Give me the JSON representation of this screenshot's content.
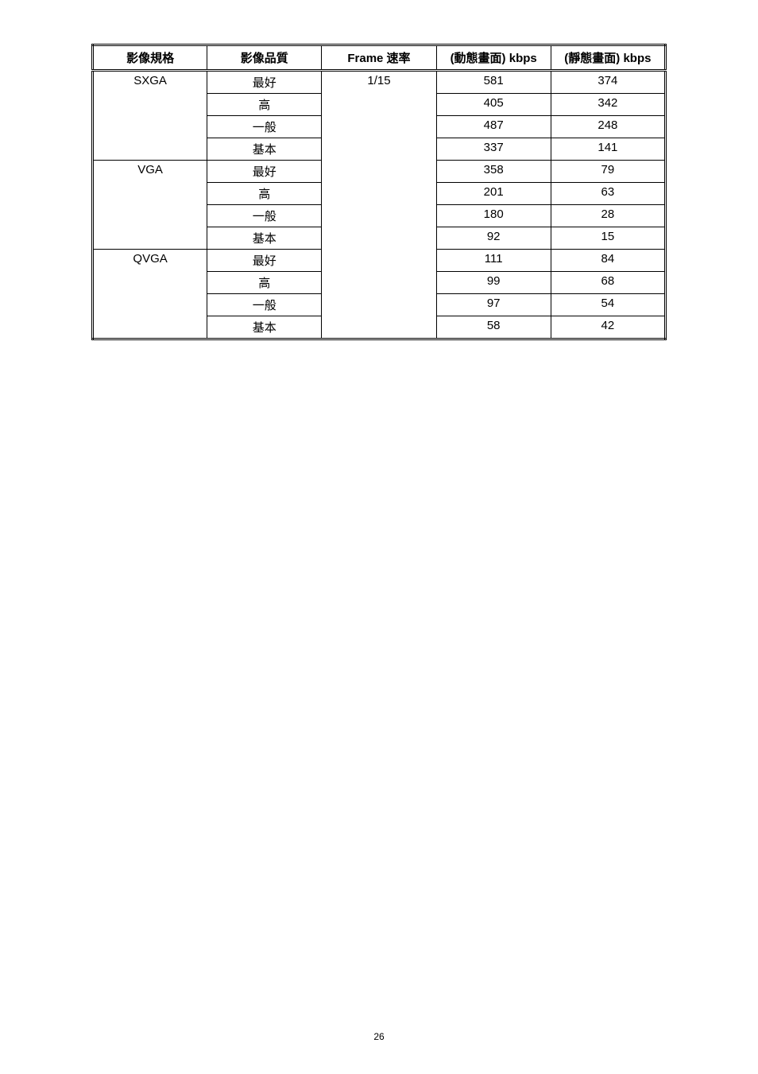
{
  "page_number": "26",
  "table": {
    "headers": [
      "影像規格",
      "影像品質",
      "Frame 速率",
      "(動態畫面) kbps",
      "(靜態畫面) kbps"
    ],
    "frame_rate": "1/15",
    "groups": [
      {
        "format": "SXGA",
        "rows": [
          {
            "quality": "最好",
            "dynamic": "581",
            "static": "374"
          },
          {
            "quality": "高",
            "dynamic": "405",
            "static": "342"
          },
          {
            "quality": "一般",
            "dynamic": "487",
            "static": "248"
          },
          {
            "quality": "基本",
            "dynamic": "337",
            "static": "141"
          }
        ]
      },
      {
        "format": "VGA",
        "rows": [
          {
            "quality": "最好",
            "dynamic": "358",
            "static": "79"
          },
          {
            "quality": "高",
            "dynamic": "201",
            "static": "63"
          },
          {
            "quality": "一般",
            "dynamic": "180",
            "static": "28"
          },
          {
            "quality": "基本",
            "dynamic": "92",
            "static": "15"
          }
        ]
      },
      {
        "format": "QVGA",
        "rows": [
          {
            "quality": "最好",
            "dynamic": "111",
            "static": "84"
          },
          {
            "quality": "高",
            "dynamic": "99",
            "static": "68"
          },
          {
            "quality": "一般",
            "dynamic": "97",
            "static": "54"
          },
          {
            "quality": "基本",
            "dynamic": "58",
            "static": "42"
          }
        ]
      }
    ]
  },
  "colors": {
    "text": "#000000",
    "background": "#ffffff",
    "border": "#000000"
  },
  "font_size_header": 15,
  "font_size_cell": 15,
  "font_size_pagenum": 12
}
